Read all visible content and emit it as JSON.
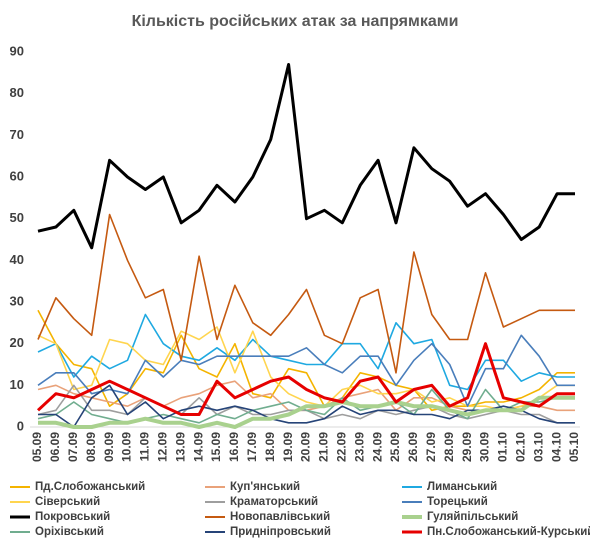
{
  "chart_data": {
    "type": "line",
    "title": "Кількість російських атак за напрямками",
    "categories": [
      "05.09",
      "06.09",
      "07.09",
      "08.09",
      "09.09",
      "10.09",
      "11.09",
      "12.09",
      "13.09",
      "14.09",
      "15.09",
      "16.09",
      "17.09",
      "18.09",
      "19.09",
      "20.09",
      "21.09",
      "22.09",
      "23.09",
      "24.09",
      "25.09",
      "26.09",
      "27.09",
      "28.09",
      "29.09",
      "30.09",
      "01.10",
      "02.10",
      "03.10",
      "04.10",
      "05.10"
    ],
    "ylim": [
      0,
      90
    ],
    "yticks": [
      0,
      10,
      20,
      30,
      40,
      50,
      60,
      70,
      80,
      90
    ],
    "grid": false,
    "series": [
      {
        "name": "Пд.Слобожанський",
        "color": "#f4b400",
        "values": [
          28,
          20,
          15,
          14,
          5,
          8,
          14,
          13,
          22,
          14,
          12,
          20,
          8,
          7,
          14,
          13,
          5,
          7,
          13,
          12,
          10,
          9,
          4,
          5,
          5,
          6,
          6,
          7,
          9,
          13,
          13
        ]
      },
      {
        "name": "Куп'янський",
        "color": "#e9a27a",
        "values": [
          9,
          10,
          8,
          7,
          6,
          5,
          7,
          5,
          7,
          8,
          10,
          11,
          7,
          8,
          4,
          4,
          5,
          7,
          8,
          9,
          4,
          7,
          7,
          5,
          4,
          4,
          4,
          5,
          5,
          4,
          4
        ]
      },
      {
        "name": "Лиманський",
        "color": "#1fa9e1",
        "values": [
          18,
          20,
          12,
          17,
          14,
          16,
          27,
          20,
          17,
          16,
          19,
          16,
          21,
          17,
          16,
          15,
          15,
          20,
          20,
          14,
          25,
          20,
          21,
          10,
          9,
          16,
          16,
          11,
          13,
          12,
          12
        ]
      },
      {
        "name": "Сіверський",
        "color": "#ffd54f",
        "values": [
          22,
          20,
          9,
          10,
          21,
          20,
          16,
          15,
          23,
          21,
          24,
          13,
          23,
          12,
          8,
          6,
          5,
          9,
          10,
          8,
          8,
          9,
          6,
          7,
          5,
          5,
          4,
          5,
          7,
          10,
          10
        ]
      },
      {
        "name": "Краматорський",
        "color": "#9e9e9e",
        "values": [
          3,
          4,
          10,
          4,
          4,
          3,
          7,
          5,
          3,
          7,
          3,
          5,
          3,
          3,
          4,
          4,
          2,
          3,
          2,
          4,
          3,
          4,
          5,
          3,
          2,
          3,
          4,
          3,
          3,
          1,
          1
        ]
      },
      {
        "name": "Торецький",
        "color": "#4a7ebb",
        "values": [
          10,
          13,
          13,
          8,
          9,
          8,
          16,
          12,
          16,
          15,
          17,
          17,
          17,
          17,
          17,
          19,
          15,
          13,
          17,
          17,
          10,
          16,
          20,
          15,
          5,
          14,
          14,
          22,
          17,
          10,
          10
        ]
      },
      {
        "name": "Покровський",
        "color": "#000000",
        "values": [
          47,
          48,
          52,
          43,
          64,
          60,
          57,
          60,
          49,
          52,
          58,
          54,
          60,
          69,
          87,
          50,
          52,
          49,
          58,
          64,
          49,
          67,
          62,
          59,
          53,
          56,
          51,
          45,
          48,
          56,
          56
        ]
      },
      {
        "name": "Новопавлівський",
        "color": "#c55a11",
        "values": [
          21,
          31,
          26,
          22,
          51,
          40,
          31,
          33,
          16,
          41,
          21,
          34,
          25,
          22,
          27,
          33,
          22,
          20,
          31,
          33,
          13,
          42,
          27,
          21,
          21,
          37,
          24,
          26,
          28,
          28,
          28
        ]
      },
      {
        "name": "Гуляйпільський",
        "color": "#a9d18e",
        "values": [
          1,
          1,
          0,
          0,
          1,
          1,
          2,
          1,
          1,
          0,
          1,
          0,
          2,
          2,
          3,
          5,
          5,
          6,
          5,
          5,
          6,
          5,
          5,
          4,
          3,
          4,
          4,
          4,
          7,
          7,
          7
        ]
      },
      {
        "name": "Оріхівський",
        "color": "#70ad8f",
        "values": [
          2,
          3,
          6,
          3,
          2,
          1,
          2,
          3,
          2,
          1,
          3,
          2,
          4,
          5,
          6,
          4,
          3,
          7,
          4,
          5,
          6,
          3,
          9,
          4,
          2,
          9,
          4,
          6,
          6,
          7,
          7
        ]
      },
      {
        "name": "Придніпровський",
        "color": "#264478",
        "values": [
          3,
          3,
          0,
          7,
          10,
          3,
          6,
          2,
          4,
          5,
          4,
          5,
          4,
          2,
          1,
          1,
          2,
          5,
          3,
          4,
          4,
          3,
          3,
          2,
          4,
          4,
          5,
          4,
          2,
          1,
          1
        ]
      },
      {
        "name": "Пн.Слобожанський-Курський",
        "color": "#e60000",
        "values": [
          4,
          8,
          7,
          9,
          11,
          9,
          7,
          5,
          3,
          3,
          11,
          7,
          9,
          11,
          12,
          9,
          7,
          6,
          11,
          12,
          6,
          9,
          10,
          5,
          7,
          20,
          7,
          6,
          5,
          8,
          8
        ]
      }
    ]
  }
}
